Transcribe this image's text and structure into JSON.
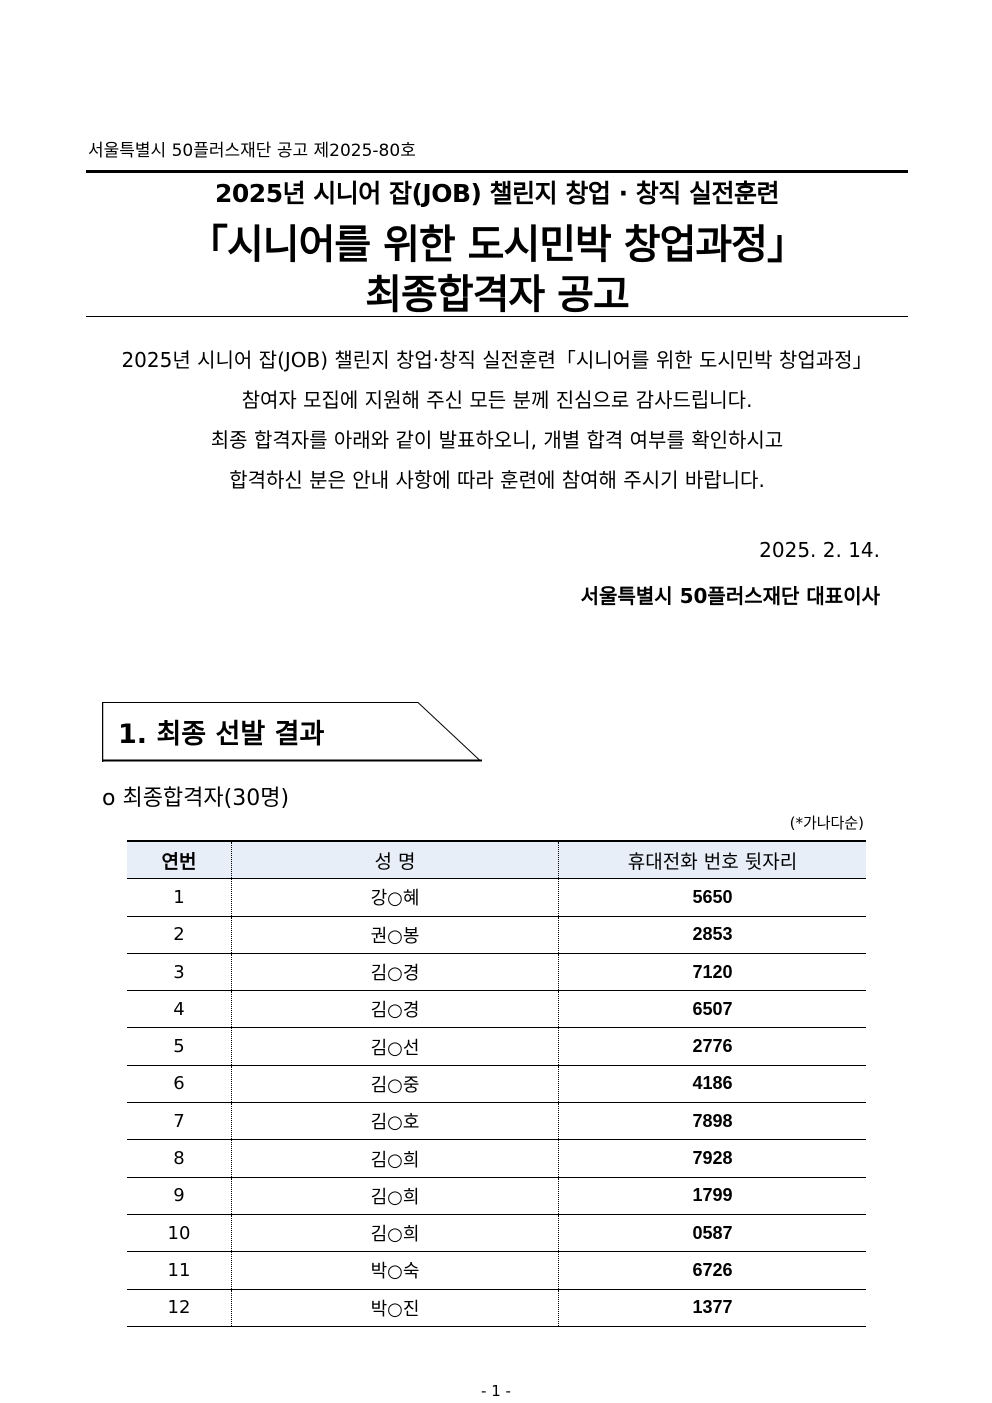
{
  "header": {
    "doc_number": "서울특별시 50플러스재단 공고 제2025-80호",
    "title_line1": "2025년 시니어 잡(JOB) 챌린지 창업 · 창직 실전훈련",
    "title_line2": "「시니어를 위한 도시민박 창업과정」",
    "title_line3": "최종합격자 공고"
  },
  "intro": [
    "2025년 시니어 잡(JOB) 챌린지 창업·창직 실전훈련「시니어를 위한 도시민박 창업과정」",
    "참여자 모집에 지원해 주신 모든 분께 진심으로 감사드립니다.",
    "최종 합격자를 아래와 같이 발표하오니, 개별 합격 여부를 확인하시고",
    "합격하신 분은 안내 사항에 따라 훈련에 참여해 주시기 바랍니다."
  ],
  "date": "2025. 2. 14.",
  "issuer": "서울특별시 50플러스재단 대표이사",
  "section": {
    "title": "1. 최종 선발 결과",
    "subtitle": "o  최종합격자(30명)",
    "sort_note": "(*가나다순)"
  },
  "table": {
    "header_bg": "#e8eef8",
    "columns": [
      "연번",
      "성  명",
      "휴대전화 번호 뒷자리"
    ],
    "rows": [
      [
        "1",
        "강○혜",
        "5650"
      ],
      [
        "2",
        "권○봉",
        "2853"
      ],
      [
        "3",
        "김○경",
        "7120"
      ],
      [
        "4",
        "김○경",
        "6507"
      ],
      [
        "5",
        "김○선",
        "2776"
      ],
      [
        "6",
        "김○중",
        "4186"
      ],
      [
        "7",
        "김○호",
        "7898"
      ],
      [
        "8",
        "김○희",
        "7928"
      ],
      [
        "9",
        "김○희",
        "1799"
      ],
      [
        "10",
        "김○희",
        "0587"
      ],
      [
        "11",
        "박○숙",
        "6726"
      ],
      [
        "12",
        "박○진",
        "1377"
      ]
    ]
  },
  "page_number": "- 1 -"
}
